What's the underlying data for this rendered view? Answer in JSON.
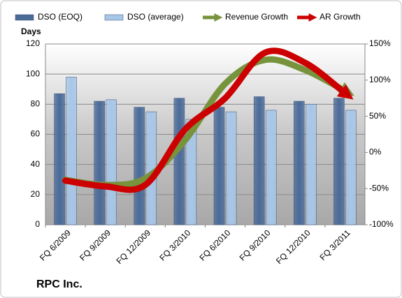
{
  "chart_data": {
    "type": "bar-line",
    "title": "RPC Inc.",
    "y_label": "Days",
    "categories": [
      "FQ 6/2009",
      "FQ 9/2009",
      "FQ 12/2009",
      "FQ 3/2010",
      "FQ 6/2010",
      "FQ 9/2010",
      "FQ 12/2010",
      "FQ 3/2011"
    ],
    "series": [
      {
        "name": "DSO (EOQ)",
        "color": "#4a6a98",
        "kind": "bar",
        "values": [
          87,
          82,
          78,
          84,
          78,
          85,
          82,
          84
        ]
      },
      {
        "name": "DSO (average)",
        "color": "#a7c6e8",
        "kind": "bar",
        "values": [
          98,
          83,
          75,
          70,
          75,
          76,
          80,
          76
        ]
      },
      {
        "name": "Revenue Growth",
        "color": "#77933c",
        "kind": "line",
        "axis": "y2",
        "values": [
          -38,
          -45,
          -36,
          17,
          95,
          128,
          114,
          85
        ]
      },
      {
        "name": "AR Growth",
        "color": "#cc0000",
        "kind": "line",
        "axis": "y2",
        "values": [
          -39,
          -47,
          -45,
          32,
          75,
          138,
          124,
          82
        ]
      }
    ],
    "ylim": [
      0,
      120
    ],
    "yticks": [
      0,
      20,
      40,
      60,
      80,
      100,
      120
    ],
    "y2lim": [
      -100,
      150
    ],
    "y2ticks": [
      {
        "value": -100,
        "label": "-100%"
      },
      {
        "value": -50,
        "label": "-50%"
      },
      {
        "value": 0,
        "label": "0%"
      },
      {
        "value": 50,
        "label": "50%"
      },
      {
        "value": 100,
        "label": "100%"
      },
      {
        "value": 150,
        "label": "150%"
      }
    ],
    "grid": true,
    "legend": "top"
  }
}
